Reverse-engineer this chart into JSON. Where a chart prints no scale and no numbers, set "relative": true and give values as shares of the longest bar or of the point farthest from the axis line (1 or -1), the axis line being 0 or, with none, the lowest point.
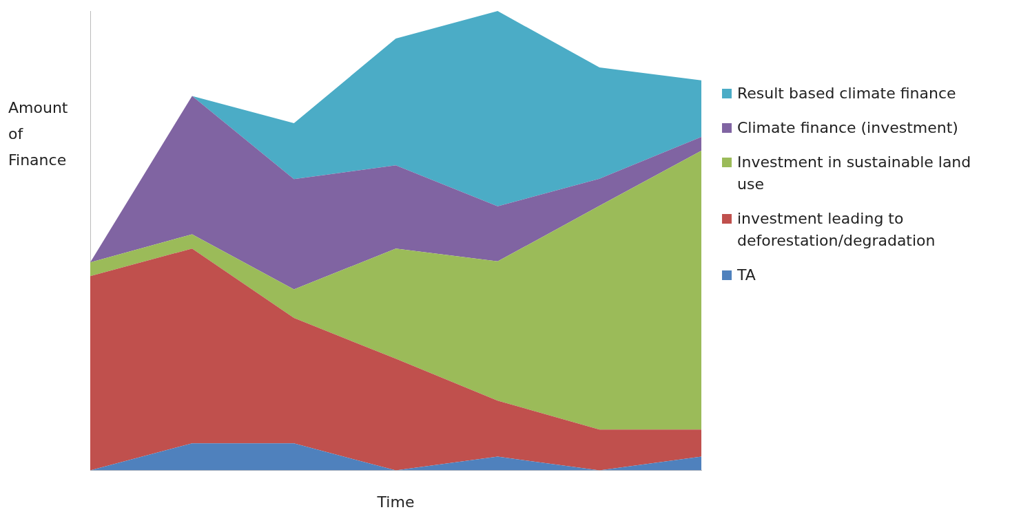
{
  "chart_data": {
    "type": "area",
    "stacked": true,
    "relative": true,
    "xlabel": "Time",
    "ylabel": "Amount of Finance",
    "categories": [
      null,
      null,
      null,
      null,
      null,
      null,
      null
    ],
    "legend": "right",
    "grid": false,
    "marker": "none",
    "series": [
      {
        "name": "TA",
        "color": "#4f81bd",
        "values": [
          0,
          0.059,
          0.059,
          0,
          0.03,
          0,
          0.03
        ]
      },
      {
        "name": "investment leading to deforestation/degradation",
        "color": "#c0504d",
        "values": [
          0.423,
          0.424,
          0.273,
          0.243,
          0.122,
          0.089,
          0.059
        ]
      },
      {
        "name": "Investment in sustainable land use",
        "color": "#9bbb59",
        "values": [
          0.03,
          0.031,
          0.062,
          0.24,
          0.303,
          0.487,
          0.607
        ]
      },
      {
        "name": "Climate finance (investment)",
        "color": "#8064a2",
        "values": [
          0,
          0.301,
          0.24,
          0.181,
          0.12,
          0.059,
          0.03
        ]
      },
      {
        "name": "Result based climate finance",
        "color": "#4bacc6",
        "values": [
          0,
          0,
          0.122,
          0.276,
          0.425,
          0.242,
          0.123
        ]
      }
    ]
  }
}
